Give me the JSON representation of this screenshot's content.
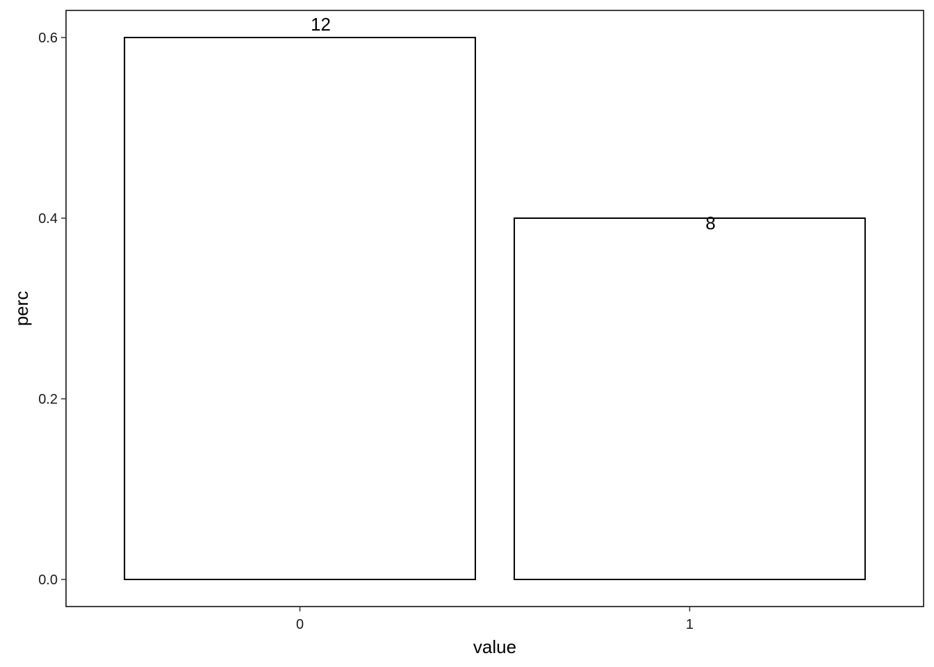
{
  "chart_data": {
    "type": "bar",
    "categories": [
      "0",
      "1"
    ],
    "values": [
      0.6,
      0.4
    ],
    "data_labels": [
      "12",
      "8"
    ],
    "title": "",
    "xlabel": "value",
    "ylabel": "perc",
    "ylim": [
      -0.03,
      0.63
    ],
    "yticks": [
      0.0,
      0.2,
      0.4,
      0.6
    ],
    "ytick_labels": [
      "0.0",
      "0.2",
      "0.4",
      "0.6"
    ],
    "grid": false,
    "bar_fill": "#ffffff",
    "bar_stroke": "#000000"
  }
}
